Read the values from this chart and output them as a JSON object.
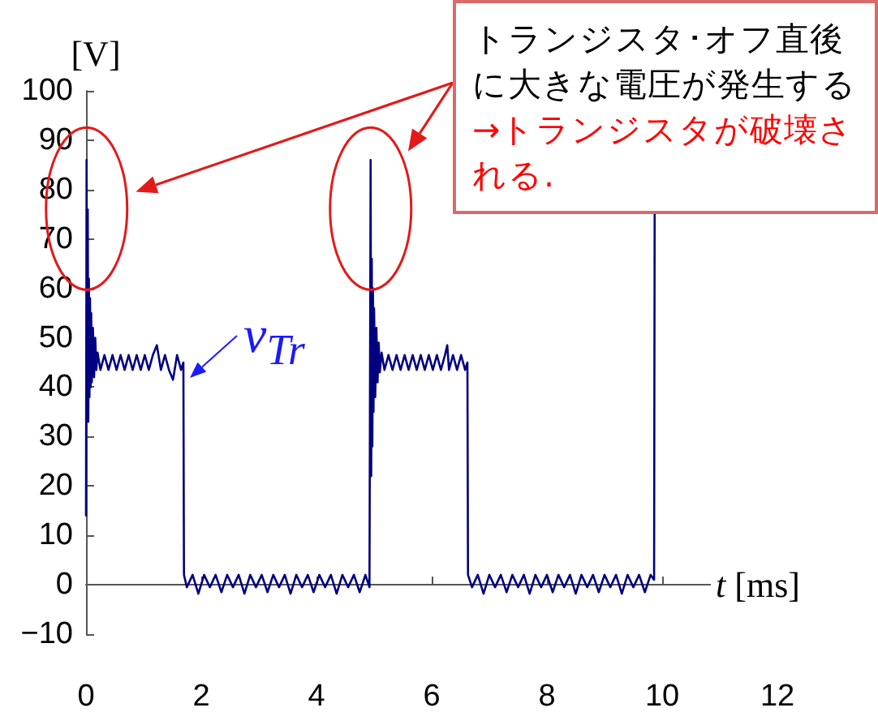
{
  "chart_data": {
    "type": "line",
    "xlabel": "t [ms]",
    "ylabel": "[V]",
    "annotations": [
      "トランジスタ･オフ直後に大きな電圧が発生する",
      "→トランジスタが破壊される."
    ],
    "x": [
      0,
      0.01,
      0.02,
      0.03,
      0.04,
      0.05,
      0.06,
      0.07,
      0.08,
      0.09,
      0.1,
      0.12,
      0.14,
      0.16,
      0.18,
      0.2,
      0.25,
      0.32,
      0.39,
      0.46,
      0.53,
      0.6,
      0.67,
      0.74,
      0.81,
      0.88,
      0.95,
      1.02,
      1.09,
      1.16,
      1.23,
      1.3,
      1.37,
      1.44,
      1.51,
      1.58,
      1.65,
      1.69,
      1.7,
      1.75,
      1.85,
      1.95,
      2.05,
      2.15,
      2.25,
      2.35,
      2.45,
      2.55,
      2.65,
      2.75,
      2.85,
      2.95,
      3.05,
      3.15,
      3.25,
      3.35,
      3.45,
      3.55,
      3.65,
      3.75,
      3.85,
      3.95,
      4.05,
      4.15,
      4.25,
      4.35,
      4.45,
      4.55,
      4.65,
      4.75,
      4.85,
      4.92,
      4.94,
      4.95,
      4.96,
      4.97,
      4.98,
      4.99,
      5.0,
      5.02,
      5.04,
      5.06,
      5.08,
      5.1,
      5.13,
      5.18,
      5.25,
      5.32,
      5.39,
      5.46,
      5.53,
      5.6,
      5.67,
      5.74,
      5.81,
      5.88,
      5.95,
      6.02,
      6.09,
      6.16,
      6.23,
      6.27,
      6.3,
      6.37,
      6.44,
      6.51,
      6.58,
      6.62,
      6.63,
      6.7,
      6.8,
      6.9,
      7.0,
      7.1,
      7.2,
      7.3,
      7.4,
      7.5,
      7.6,
      7.7,
      7.8,
      7.9,
      8.0,
      8.1,
      8.2,
      8.3,
      8.4,
      8.5,
      8.6,
      8.7,
      8.8,
      8.9,
      9.0,
      9.1,
      9.2,
      9.3,
      9.4,
      9.5,
      9.6,
      9.7,
      9.8,
      9.86,
      9.87
    ],
    "series": [
      {
        "name": "v$_{Tr}$",
        "color": "#000080",
        "values": [
          14,
          86,
          38,
          76,
          33,
          62,
          38,
          58,
          40,
          55,
          41,
          52,
          42,
          50,
          43.5,
          47,
          43.5,
          46.5,
          43.5,
          46.5,
          43.5,
          46.5,
          43.5,
          46.5,
          43.5,
          46.5,
          43.5,
          46.5,
          43.5,
          46.5,
          48.5,
          43.5,
          46.5,
          43.5,
          41.5,
          46.5,
          43.5,
          45,
          2,
          -0.5,
          2,
          -1.8,
          2,
          -0.5,
          2,
          -1.5,
          2,
          -0.5,
          2,
          -1.8,
          2,
          -0.5,
          2,
          -1.5,
          2,
          -0.5,
          2,
          -1.8,
          2,
          -0.5,
          2,
          -1.5,
          2,
          -0.5,
          2,
          -1.8,
          2,
          -0.5,
          2,
          -1.5,
          2,
          -0.5,
          86,
          22,
          66,
          28,
          60,
          35,
          56,
          38,
          52,
          41,
          49,
          43,
          47,
          43.5,
          46.5,
          43.5,
          46.5,
          43.5,
          46.5,
          43.5,
          46.5,
          43.5,
          46.5,
          43.5,
          46.5,
          43.5,
          46.5,
          43.5,
          46.5,
          48.5,
          43.5,
          46.5,
          43.5,
          46.5,
          43.5,
          45,
          2,
          -0.5,
          2,
          -1.8,
          2,
          -0.5,
          2,
          -1.5,
          2,
          -0.5,
          2,
          -1.8,
          2,
          -0.5,
          2,
          -1.5,
          2,
          -0.5,
          2,
          -1.8,
          2,
          -0.5,
          2,
          -1.5,
          2,
          -0.5,
          2,
          -1.8,
          2,
          -0.5,
          2,
          -1.5,
          2,
          1,
          75
        ]
      }
    ],
    "xlim": [
      0,
      12
    ],
    "xticks": [
      0,
      2,
      4,
      6,
      8,
      10,
      12
    ],
    "ylim": [
      -10,
      100
    ],
    "yticks": [
      {
        "value": -10,
        "label": "−10"
      },
      0,
      10,
      20,
      30,
      40,
      50,
      60,
      70,
      80,
      90,
      100
    ],
    "marker": "none",
    "line_style": "solid"
  }
}
